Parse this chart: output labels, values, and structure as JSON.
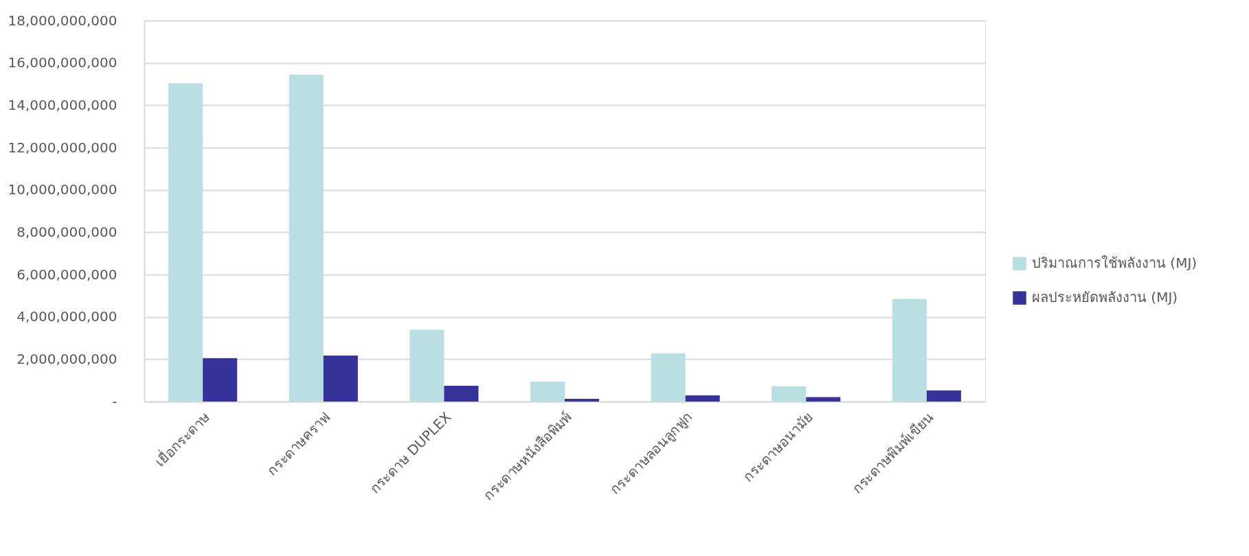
{
  "chart_data": {
    "type": "bar",
    "categories": [
      "เยื่อกระดาษ",
      "กระดาษคราฟ",
      "กระดาษ DUPLEX",
      "กระดาษหนังสือพิมพ์",
      "กระดาษลอนลูกฟูก",
      "กระดาษอนามัย",
      "กระดาษพิมพ์เขียน"
    ],
    "series": [
      {
        "name": "ปริมาณการใช้พลังงาน (MJ)",
        "color": "#b9dfe2",
        "values": [
          15040000000,
          15450000000,
          3390000000,
          940000000,
          2280000000,
          720000000,
          4850000000
        ]
      },
      {
        "name": "ผลประหยัดพลังงาน (MJ)",
        "color": "#35339a",
        "values": [
          2050000000,
          2170000000,
          750000000,
          130000000,
          290000000,
          210000000,
          530000000
        ]
      }
    ],
    "ylim": [
      0,
      18000000000
    ],
    "yticks": [
      {
        "value": 0,
        "label": "-"
      },
      {
        "value": 2000000000,
        "label": "2,000,000,000"
      },
      {
        "value": 4000000000,
        "label": "4,000,000,000"
      },
      {
        "value": 6000000000,
        "label": "6,000,000,000"
      },
      {
        "value": 8000000000,
        "label": "8,000,000,000"
      },
      {
        "value": 10000000000,
        "label": "10,000,000,000"
      },
      {
        "value": 12000000000,
        "label": "12,000,000,000"
      },
      {
        "value": 14000000000,
        "label": "14,000,000,000"
      },
      {
        "value": 16000000000,
        "label": "16,000,000,000"
      },
      {
        "value": 18000000000,
        "label": "18,000,000,000"
      }
    ],
    "grid": "y",
    "legend": "right"
  }
}
